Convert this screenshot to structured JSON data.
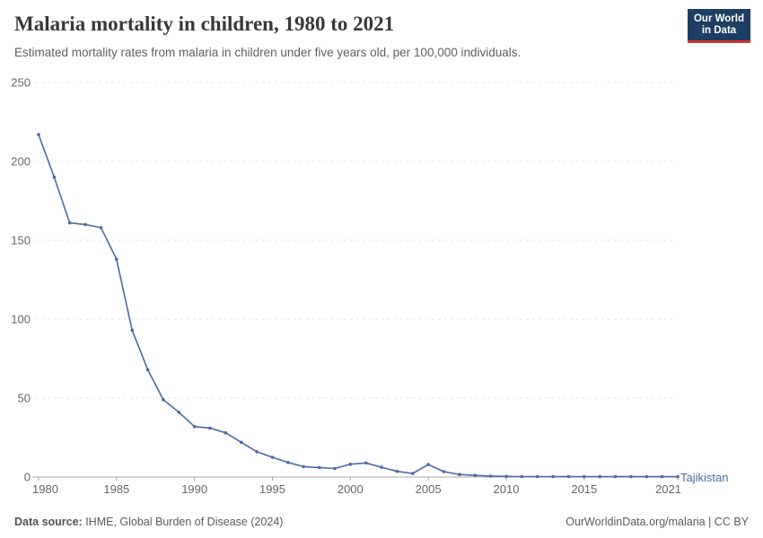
{
  "header": {
    "title": "Malaria mortality in children, 1980 to 2021",
    "subtitle": "Estimated mortality rates from malaria in children under five years old, per 100,000 individuals.",
    "logo": {
      "line1": "Our World",
      "line2": "in Data"
    }
  },
  "chart_data": {
    "type": "line",
    "title": "Malaria mortality in children, 1980 to 2021",
    "subtitle": "Estimated mortality rates from malaria in children under five years old, per 100,000 individuals.",
    "xlabel": "",
    "ylabel": "",
    "xlim": [
      1980,
      2021
    ],
    "ylim": [
      0,
      250
    ],
    "grid": "horizontal-dashed",
    "legend_position": "end-of-line",
    "x_ticks": [
      1980,
      1985,
      1990,
      1995,
      2000,
      2005,
      2010,
      2015,
      2021
    ],
    "y_ticks": [
      0,
      50,
      100,
      150,
      200,
      250
    ],
    "series": [
      {
        "name": "Tajikistan",
        "color": "#4b6aa3",
        "x": [
          1980,
          1981,
          1982,
          1983,
          1984,
          1985,
          1986,
          1987,
          1988,
          1989,
          1990,
          1991,
          1992,
          1993,
          1994,
          1995,
          1996,
          1997,
          1998,
          1999,
          2000,
          2001,
          2002,
          2003,
          2004,
          2005,
          2006,
          2007,
          2008,
          2009,
          2010,
          2011,
          2012,
          2013,
          2014,
          2015,
          2016,
          2017,
          2018,
          2019,
          2020,
          2021
        ],
        "values": [
          217,
          190,
          161,
          160,
          158,
          138,
          93,
          68,
          49,
          41,
          32,
          31,
          28,
          22,
          16,
          12.5,
          9.2,
          6.6,
          6,
          5.4,
          8.1,
          8.9,
          6.2,
          3.6,
          2.3,
          7.9,
          3.4,
          1.6,
          1,
          0.6,
          0.4,
          0.3,
          0.3,
          0.3,
          0.2,
          0.2,
          0.2,
          0.2,
          0.2,
          0.2,
          0.2,
          0.2
        ]
      }
    ]
  },
  "footer": {
    "source_label": "Data source:",
    "source_text": " IHME, Global Burden of Disease (2024)",
    "credit": "OurWorldinData.org/malaria | CC BY"
  },
  "colors": {
    "line": "#4b6aa3",
    "gridline": "#e2e2e2",
    "axis": "#a8a8a8",
    "tick_label": "#666666",
    "logo_bg": "#1d3d63",
    "logo_stripe": "#cc342e"
  }
}
